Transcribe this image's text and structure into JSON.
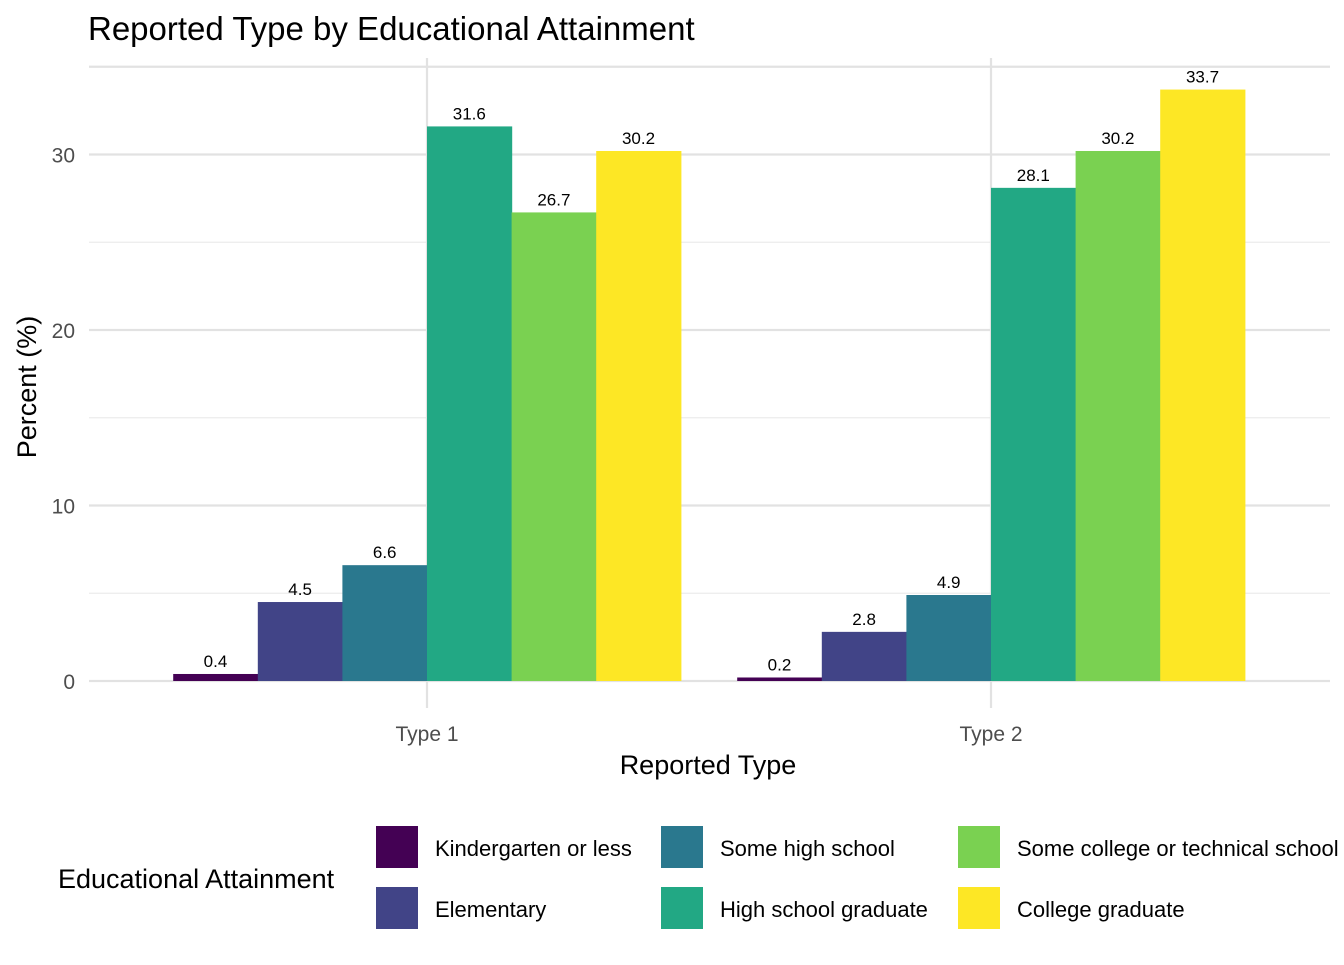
{
  "chart_data": {
    "type": "bar",
    "title": "Reported Type by Educational Attainment",
    "xlabel": "Reported Type",
    "ylabel": "Percent (%)",
    "categories": [
      "Type 1",
      "Type 2"
    ],
    "ylim": [
      0,
      35
    ],
    "yticks": [
      0,
      10,
      20,
      30
    ],
    "grid": true,
    "legend": {
      "title": "Educational Attainment",
      "position": "bottom"
    },
    "series": [
      {
        "name": "Kindergarten or less",
        "color": "#440154",
        "values": [
          0.4,
          0.2
        ],
        "labels": [
          "0.4",
          "0.2"
        ]
      },
      {
        "name": "Elementary",
        "color": "#414487",
        "values": [
          4.5,
          2.8
        ],
        "labels": [
          "4.5",
          "2.8"
        ]
      },
      {
        "name": "Some high school",
        "color": "#2A788E",
        "values": [
          6.6,
          4.9
        ],
        "labels": [
          "6.6",
          "4.9"
        ]
      },
      {
        "name": "High school graduate",
        "color": "#22A884",
        "values": [
          31.6,
          28.1
        ],
        "labels": [
          "31.6",
          "28.1"
        ]
      },
      {
        "name": "Some college or technical school",
        "color": "#7AD151",
        "values": [
          26.7,
          30.2
        ],
        "labels": [
          "26.7",
          "30.2"
        ]
      },
      {
        "name": "College graduate",
        "color": "#FDE725",
        "values": [
          30.2,
          33.7
        ],
        "labels": [
          "30.2",
          "33.7"
        ]
      }
    ]
  }
}
